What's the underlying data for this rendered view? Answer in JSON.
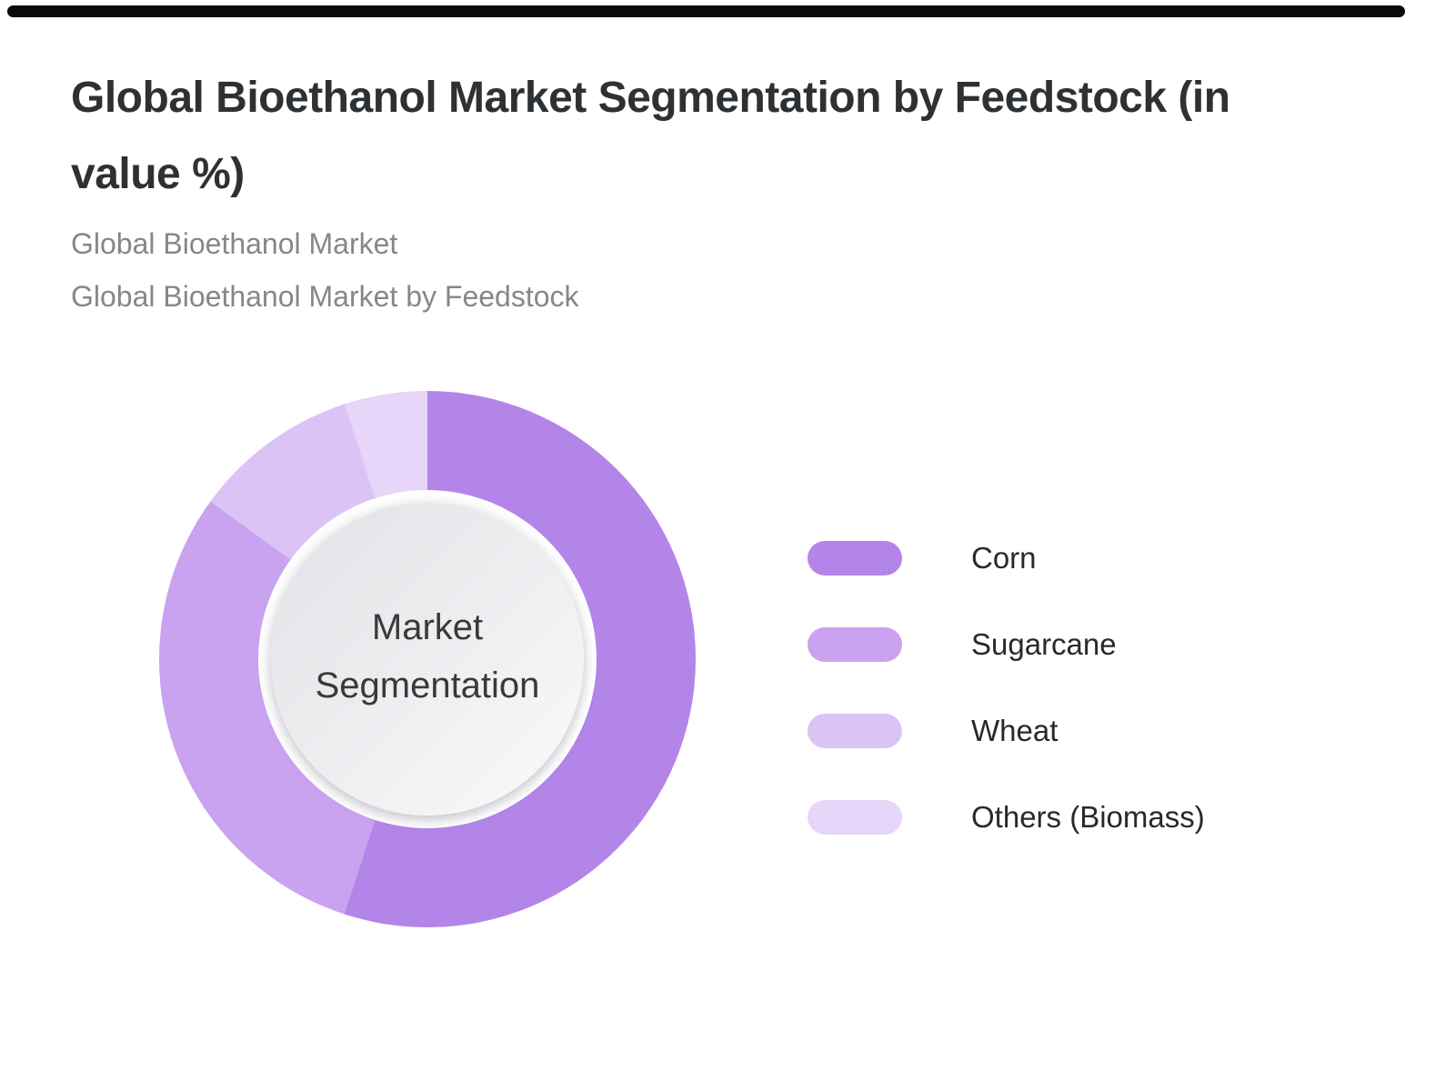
{
  "page": {
    "background": "#ffffff",
    "top_bar_color": "#0b0b0c"
  },
  "header": {
    "title_line1": "Global Bioethanol Market Segmentation by Feedstock (in",
    "title_line2": "value %)",
    "subtitle_line1": "Global Bioethanol Market",
    "subtitle_line2": "Global Bioethanol Market by Feedstock"
  },
  "donut": {
    "center_label_line1": "Market",
    "center_label_line2": "Segmentation"
  },
  "chart_data": {
    "type": "pie",
    "subtype": "donut",
    "title": "Global Bioethanol Market Segmentation by Feedstock (in value %)",
    "categories": [
      "Corn",
      "Sugarcane",
      "Wheat",
      "Others (Biomass)"
    ],
    "values": [
      55,
      30,
      10,
      5
    ],
    "value_unit": "%",
    "colors": [
      "#b385e8",
      "#c9a2f0",
      "#dcc3f5",
      "#e7d5fa"
    ],
    "start_angle_deg": 0,
    "direction": "clockwise",
    "center_label": "Market Segmentation",
    "legend_position": "right",
    "data_labels_shown": false
  }
}
